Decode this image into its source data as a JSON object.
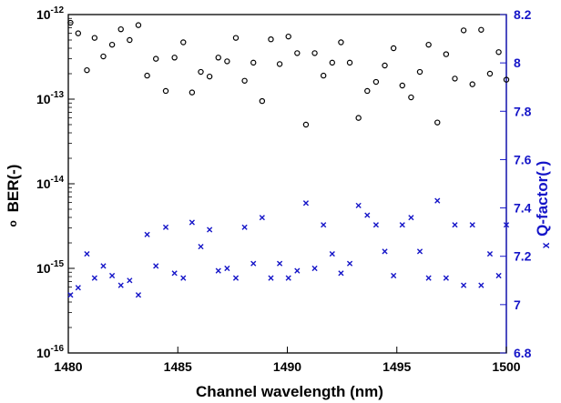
{
  "chart_data": {
    "type": "scatter",
    "title": "",
    "xlabel": "Channel wavelength (nm)",
    "xlim": [
      1480,
      1500
    ],
    "x_ticks": [
      "1480",
      "1485",
      "1490",
      "1495",
      "1500"
    ],
    "ylabel_left": "BER(-)",
    "ylabel_left_marker": "o",
    "ylim_left_exponents": [
      -16,
      -12
    ],
    "y_ticks_left": [
      {
        "base": "10",
        "exp": "-12"
      },
      {
        "base": "10",
        "exp": "-13"
      },
      {
        "base": "10",
        "exp": "-14"
      },
      {
        "base": "10",
        "exp": "-15"
      },
      {
        "base": "10",
        "exp": "-16"
      }
    ],
    "yscale_left": "log",
    "ylabel_right": "Q-factor(-)",
    "ylabel_right_marker": "x",
    "ylim_right": [
      6.8,
      8.2
    ],
    "y_ticks_right": [
      "8.2",
      "8",
      "7.8",
      "7.6",
      "7.4",
      "7.2",
      "7",
      "6.8"
    ],
    "grid": false,
    "colors": {
      "ber": "#000000",
      "q": "#1515c8"
    },
    "series": [
      {
        "axis": "left",
        "marker": "o",
        "x": [
          1480.1,
          1480.45,
          1480.85,
          1481.2,
          1481.6,
          1482.0,
          1482.4,
          1482.8,
          1483.2,
          1483.6,
          1484.0,
          1484.45,
          1484.85,
          1485.25,
          1485.65,
          1486.05,
          1486.45,
          1486.85,
          1487.25,
          1487.65,
          1488.05,
          1488.45,
          1488.85,
          1489.25,
          1489.65,
          1490.05,
          1490.45,
          1490.85,
          1491.25,
          1491.65,
          1492.05,
          1492.45,
          1492.85,
          1493.25,
          1493.65,
          1494.05,
          1494.45,
          1494.85,
          1495.25,
          1495.65,
          1496.05,
          1496.45,
          1496.85,
          1497.25,
          1497.65,
          1498.05,
          1498.45,
          1498.85,
          1499.25,
          1499.65,
          1500.0
        ],
        "y": [
          8e-13,
          6e-13,
          2.2e-13,
          5.3e-13,
          3.2e-13,
          4.4e-13,
          6.7e-13,
          5e-13,
          7.5e-13,
          1.9e-13,
          3e-13,
          1.25e-13,
          3.1e-13,
          4.7e-13,
          1.2e-13,
          2.1e-13,
          1.85e-13,
          3.1e-13,
          2.8e-13,
          5.3e-13,
          1.65e-13,
          2.7e-13,
          9.5e-14,
          5.1e-13,
          2.6e-13,
          5.5e-13,
          3.5e-13,
          5e-14,
          3.5e-13,
          1.9e-13,
          2.7e-13,
          4.7e-13,
          2.7e-13,
          6e-14,
          1.25e-13,
          1.6e-13,
          2.5e-13,
          4e-13,
          1.45e-13,
          1.05e-13,
          2.1e-13,
          4.4e-13,
          5.3e-14,
          3.4e-13,
          1.75e-13,
          6.5e-13,
          1.5e-13,
          6.6e-13,
          2e-13,
          3.6e-13,
          1.7e-13
        ]
      },
      {
        "axis": "right",
        "marker": "x",
        "x": [
          1480.1,
          1480.45,
          1480.85,
          1481.2,
          1481.6,
          1482.0,
          1482.4,
          1482.8,
          1483.2,
          1483.6,
          1484.0,
          1484.45,
          1484.85,
          1485.25,
          1485.65,
          1486.05,
          1486.45,
          1486.85,
          1487.25,
          1487.65,
          1488.05,
          1488.45,
          1488.85,
          1489.25,
          1489.65,
          1490.05,
          1490.45,
          1490.85,
          1491.25,
          1491.65,
          1492.05,
          1492.45,
          1492.85,
          1493.25,
          1493.65,
          1494.05,
          1494.45,
          1494.85,
          1495.25,
          1495.65,
          1496.05,
          1496.45,
          1496.85,
          1497.25,
          1497.65,
          1498.05,
          1498.45,
          1498.85,
          1499.25,
          1499.65,
          1500.0
        ],
        "y": [
          7.04,
          7.07,
          7.21,
          7.11,
          7.16,
          7.12,
          7.08,
          7.1,
          7.04,
          7.29,
          7.16,
          7.32,
          7.13,
          7.11,
          7.34,
          7.24,
          7.31,
          7.14,
          7.15,
          7.11,
          7.32,
          7.17,
          7.36,
          7.11,
          7.17,
          7.11,
          7.14,
          7.42,
          7.15,
          7.33,
          7.21,
          7.13,
          7.17,
          7.41,
          7.37,
          7.33,
          7.22,
          7.12,
          7.33,
          7.36,
          7.22,
          7.11,
          7.43,
          7.11,
          7.33,
          7.08,
          7.33,
          7.08,
          7.21,
          7.12,
          7.33
        ]
      }
    ]
  }
}
